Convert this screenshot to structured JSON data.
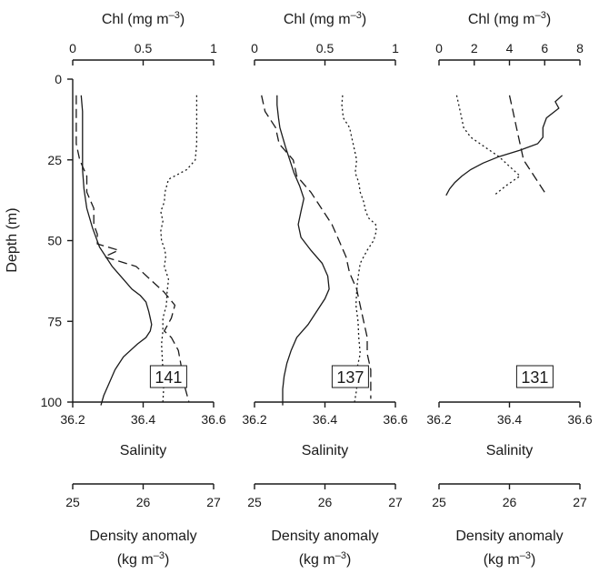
{
  "chart_data": {
    "type": "line",
    "ylabel": "Depth (m)",
    "ylim": [
      100,
      0
    ],
    "y_ticks": [
      "0",
      "25",
      "50",
      "75",
      "100"
    ],
    "top_axis_label": "Chl (mg m",
    "top_axis_unit_sup": "–3",
    "top_axis_unit_close": ")",
    "bottom_axis_label": "Salinity",
    "density_axis_label_line1": "Density  anomaly",
    "density_axis_label_line2": "(kg m",
    "density_axis_unit_sup": "–3",
    "density_axis_unit_close": ")",
    "salinity_ticks": [
      "36.2",
      "36.4",
      "36.6"
    ],
    "salinity_range": [
      36.2,
      36.6
    ],
    "density_ticks": [
      "25",
      "26",
      "27"
    ],
    "density_range": [
      25,
      27
    ],
    "line_styles": {
      "chlorophyll": "solid",
      "salinity": "dashed",
      "density_anomaly": "dotted"
    },
    "panels": [
      {
        "station": "141",
        "chl_range": [
          0,
          1
        ],
        "chl_ticks": [
          "0",
          "0.5",
          "1"
        ],
        "chlorophyll": {
          "depth": [
            5,
            10,
            16,
            22,
            28,
            34,
            40,
            46,
            52,
            58,
            62,
            65,
            67,
            69,
            72,
            74,
            76,
            78,
            80,
            82,
            86,
            90,
            94,
            98,
            101
          ],
          "value": [
            0.06,
            0.07,
            0.07,
            0.07,
            0.07,
            0.08,
            0.1,
            0.14,
            0.19,
            0.28,
            0.36,
            0.42,
            0.48,
            0.52,
            0.54,
            0.55,
            0.56,
            0.55,
            0.52,
            0.46,
            0.36,
            0.3,
            0.26,
            0.22,
            0.2
          ]
        },
        "salinity": {
          "depth": [
            5,
            10,
            16,
            20,
            25,
            30,
            35,
            40,
            45,
            48,
            51,
            53,
            55,
            58,
            62,
            66,
            70,
            74,
            78,
            80,
            84,
            90,
            96,
            100
          ],
          "value": [
            36.21,
            36.21,
            36.21,
            36.21,
            36.22,
            36.24,
            36.24,
            36.26,
            36.26,
            36.27,
            36.27,
            36.33,
            36.29,
            36.38,
            36.42,
            36.46,
            36.49,
            36.48,
            36.46,
            36.48,
            36.5,
            36.51,
            36.52,
            36.53
          ]
        },
        "density": {
          "depth": [
            5,
            10,
            15,
            20,
            25,
            28,
            31,
            35,
            38,
            41,
            44,
            47,
            50,
            53,
            55,
            58,
            62,
            66,
            70,
            74,
            78,
            82,
            90,
            96,
            100
          ],
          "value": [
            26.76,
            26.76,
            26.76,
            26.76,
            26.74,
            26.62,
            26.36,
            26.31,
            26.3,
            26.25,
            26.28,
            26.25,
            26.26,
            26.31,
            26.32,
            26.3,
            26.36,
            26.34,
            26.33,
            26.28,
            26.28,
            26.26,
            26.28,
            26.29,
            26.28
          ]
        }
      },
      {
        "station": "137",
        "chl_range": [
          0,
          1
        ],
        "chl_ticks": [
          "0",
          "0.5",
          "1"
        ],
        "chlorophyll": {
          "depth": [
            5,
            8,
            12,
            15,
            18,
            21,
            25,
            29,
            33,
            37,
            41,
            45,
            49,
            53,
            57,
            61,
            65,
            68,
            72,
            76,
            80,
            84,
            88,
            92,
            96,
            101
          ],
          "value": [
            0.16,
            0.16,
            0.17,
            0.18,
            0.2,
            0.22,
            0.25,
            0.28,
            0.32,
            0.35,
            0.33,
            0.31,
            0.33,
            0.4,
            0.48,
            0.52,
            0.53,
            0.5,
            0.44,
            0.38,
            0.3,
            0.26,
            0.23,
            0.21,
            0.2,
            0.2
          ]
        },
        "salinity": {
          "depth": [
            5,
            10,
            15,
            20,
            25,
            30,
            35,
            40,
            45,
            50,
            55,
            60,
            65,
            70,
            75,
            80,
            85,
            90,
            95,
            99
          ],
          "value": [
            36.22,
            36.23,
            36.26,
            36.27,
            36.31,
            36.32,
            36.36,
            36.39,
            36.42,
            36.44,
            36.46,
            36.47,
            36.49,
            36.5,
            36.51,
            36.52,
            36.52,
            36.53,
            36.53,
            36.53
          ]
        },
        "density": {
          "depth": [
            5,
            8,
            12,
            15,
            18,
            21,
            25,
            29,
            32,
            35,
            38,
            41,
            43,
            45,
            47,
            50,
            53,
            57,
            60,
            63,
            66,
            70,
            75,
            80,
            85,
            90,
            96,
            100
          ],
          "value": [
            26.25,
            26.24,
            26.26,
            26.35,
            26.38,
            26.41,
            26.45,
            26.43,
            26.48,
            26.5,
            26.55,
            26.58,
            26.62,
            26.72,
            26.73,
            26.69,
            26.6,
            26.5,
            26.48,
            26.46,
            26.45,
            26.44,
            26.47,
            26.48,
            26.5,
            26.45,
            26.45,
            26.42
          ]
        }
      },
      {
        "station": "131",
        "chl_range": [
          0,
          8
        ],
        "chl_ticks": [
          "0",
          "2",
          "4",
          "6",
          "8"
        ],
        "chlorophyll": {
          "depth": [
            5,
            7,
            9,
            12,
            15,
            18,
            20,
            22,
            24,
            26,
            28,
            30,
            32,
            34,
            36
          ],
          "value": [
            7.0,
            6.6,
            6.8,
            6.1,
            5.9,
            5.9,
            5.6,
            4.6,
            3.4,
            2.5,
            1.8,
            1.3,
            0.9,
            0.6,
            0.4
          ],
          "show": true
        },
        "salinity": {
          "depth": [
            5,
            10,
            15,
            20,
            25,
            30,
            35
          ],
          "value": [
            36.4,
            36.41,
            36.42,
            36.43,
            36.44,
            36.47,
            36.5
          ]
        },
        "density": {
          "depth": [
            5,
            10,
            15,
            18,
            21,
            24,
            27,
            30,
            33,
            36
          ],
          "value": [
            25.25,
            25.3,
            25.35,
            25.45,
            25.65,
            25.85,
            26.0,
            26.15,
            25.95,
            25.78
          ]
        }
      }
    ]
  }
}
